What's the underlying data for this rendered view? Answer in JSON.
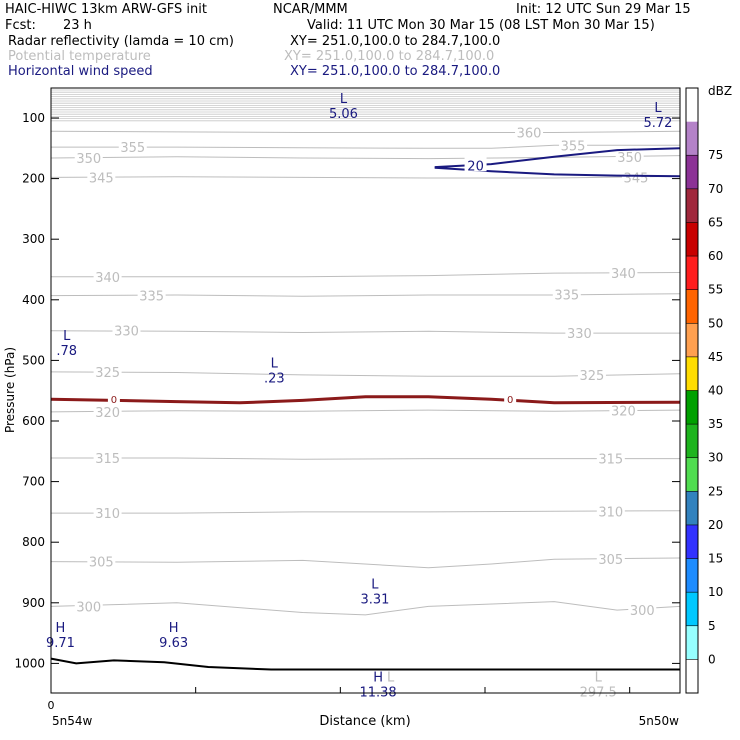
{
  "header": {
    "model": "HAIC-HIWC 13km ARW-GFS init",
    "org": "NCAR/MMM",
    "init": "Init: 12 UTC Sun 29 Mar 15",
    "fcst_label": "Fcst:",
    "fcst_value": "23 h",
    "valid": "Valid: 11 UTC Mon 30 Mar 15 (08 LST Mon 30 Mar 15)",
    "fields": [
      {
        "name": "Radar reflectivity (lamda = 10 cm)",
        "xy": "XY= 251.0,100.0 to 284.7,100.0",
        "color": "#000000"
      },
      {
        "name": "Potential temperature",
        "xy": "XY= 251.0,100.0 to 284.7,100.0",
        "color": "#bdbdbd"
      },
      {
        "name": "Horizontal wind speed",
        "xy": "XY= 251.0,100.0 to 284.7,100.0",
        "color": "#1a1a80"
      }
    ]
  },
  "chart_data": {
    "type": "line",
    "ylabel": "Pressure (hPa)",
    "xlabel": "Distance (km)",
    "xlim": [
      0,
      10
    ],
    "ylim": [
      1050,
      55
    ],
    "y_ticks": [
      100,
      200,
      300,
      400,
      500,
      600,
      700,
      800,
      900,
      1000
    ],
    "x_tick_labels": [
      {
        "x": 0,
        "label": "0"
      }
    ],
    "x_end_labels": {
      "left": "5n54w",
      "right": "5n50w"
    },
    "x_minor_ticks": [
      2.3,
      4.6,
      6.9,
      9.2
    ],
    "isentropes": [
      {
        "label": "360",
        "points": [
          [
            0,
            122
          ],
          [
            2,
            123
          ],
          [
            4,
            124
          ],
          [
            6,
            124
          ],
          [
            8,
            124
          ],
          [
            10,
            122
          ]
        ],
        "labels_at": [
          [
            7.6,
            124
          ]
        ]
      },
      {
        "label": "355",
        "points": [
          [
            0,
            148
          ],
          [
            2,
            148
          ],
          [
            4,
            149
          ],
          [
            6,
            150
          ],
          [
            7,
            150
          ],
          [
            8,
            145
          ],
          [
            10,
            145
          ]
        ],
        "labels_at": [
          [
            1.3,
            148
          ],
          [
            8.3,
            145
          ]
        ]
      },
      {
        "label": "350",
        "points": [
          [
            0,
            166
          ],
          [
            2,
            164
          ],
          [
            4,
            166
          ],
          [
            6,
            167
          ],
          [
            8,
            165
          ],
          [
            10,
            162
          ]
        ],
        "labels_at": [
          [
            0.6,
            166
          ],
          [
            9.2,
            164
          ]
        ]
      },
      {
        "label": "345",
        "points": [
          [
            0,
            198
          ],
          [
            2,
            197
          ],
          [
            4,
            198
          ],
          [
            6,
            199
          ],
          [
            8,
            199
          ],
          [
            10,
            196
          ]
        ],
        "labels_at": [
          [
            0.8,
            198
          ],
          [
            9.3,
            198
          ]
        ]
      },
      {
        "label": "340",
        "points": [
          [
            0,
            362
          ],
          [
            2,
            362
          ],
          [
            4,
            362
          ],
          [
            6,
            360
          ],
          [
            8,
            356
          ],
          [
            10,
            355
          ]
        ],
        "labels_at": [
          [
            0.9,
            362
          ],
          [
            9.1,
            356
          ]
        ]
      },
      {
        "label": "335",
        "points": [
          [
            0,
            393
          ],
          [
            2,
            392
          ],
          [
            4,
            394
          ],
          [
            6,
            392
          ],
          [
            8,
            392
          ],
          [
            10,
            390
          ]
        ],
        "labels_at": [
          [
            1.6,
            393
          ],
          [
            8.2,
            391
          ]
        ]
      },
      {
        "label": "330",
        "points": [
          [
            0,
            451
          ],
          [
            2,
            452
          ],
          [
            4,
            454
          ],
          [
            6,
            452
          ],
          [
            8,
            455
          ],
          [
            10,
            455
          ]
        ],
        "labels_at": [
          [
            1.2,
            451
          ],
          [
            8.4,
            455
          ]
        ]
      },
      {
        "label": "325",
        "points": [
          [
            0,
            519
          ],
          [
            2,
            520
          ],
          [
            4,
            524
          ],
          [
            6,
            526
          ],
          [
            8,
            526
          ],
          [
            10,
            522
          ]
        ],
        "labels_at": [
          [
            0.9,
            519
          ],
          [
            8.6,
            524
          ]
        ]
      },
      {
        "label": "320",
        "points": [
          [
            0,
            585
          ],
          [
            2,
            583
          ],
          [
            4,
            584
          ],
          [
            6,
            582
          ],
          [
            8,
            584
          ],
          [
            10,
            582
          ]
        ],
        "labels_at": [
          [
            0.9,
            585
          ],
          [
            9.1,
            583
          ]
        ]
      },
      {
        "label": "315",
        "points": [
          [
            0,
            661
          ],
          [
            2,
            661
          ],
          [
            4,
            663
          ],
          [
            6,
            662
          ],
          [
            8,
            662
          ],
          [
            10,
            662
          ]
        ],
        "labels_at": [
          [
            0.9,
            661
          ],
          [
            8.9,
            662
          ]
        ]
      },
      {
        "label": "310",
        "points": [
          [
            0,
            752
          ],
          [
            2,
            752
          ],
          [
            4,
            750
          ],
          [
            6,
            750
          ],
          [
            8,
            749
          ],
          [
            10,
            748
          ]
        ],
        "labels_at": [
          [
            0.9,
            752
          ],
          [
            8.9,
            749
          ]
        ]
      },
      {
        "label": "305",
        "points": [
          [
            0,
            832
          ],
          [
            2,
            833
          ],
          [
            4,
            830
          ],
          [
            6,
            842
          ],
          [
            7,
            836
          ],
          [
            8,
            828
          ],
          [
            10,
            826
          ]
        ],
        "labels_at": [
          [
            0.8,
            832
          ],
          [
            8.9,
            828
          ]
        ]
      },
      {
        "label": "300",
        "points": [
          [
            0,
            906
          ],
          [
            2,
            900
          ],
          [
            4,
            916
          ],
          [
            5,
            920
          ],
          [
            6,
            906
          ],
          [
            8,
            898
          ],
          [
            9,
            912
          ],
          [
            10,
            906
          ]
        ],
        "labels_at": [
          [
            0.6,
            906
          ],
          [
            9.4,
            912
          ]
        ]
      }
    ],
    "wind_speed_contours": [
      {
        "label": "20",
        "points": [
          [
            6.1,
            181
          ],
          [
            7,
            176
          ],
          [
            8,
            164
          ],
          [
            9,
            153
          ],
          [
            10,
            150
          ]
        ]
      },
      {
        "label": "",
        "points": [
          [
            6.1,
            182
          ],
          [
            7,
            188
          ],
          [
            8,
            193
          ],
          [
            9,
            195
          ],
          [
            10,
            196
          ]
        ]
      }
    ],
    "wind_label_at": [
      6.75,
      178
    ],
    "zero_contour": {
      "label": "0",
      "points": [
        [
          0,
          564
        ],
        [
          2,
          568
        ],
        [
          3,
          570
        ],
        [
          4,
          566
        ],
        [
          5,
          560
        ],
        [
          6,
          560
        ],
        [
          7,
          564
        ],
        [
          8,
          570
        ],
        [
          10,
          569
        ]
      ],
      "labels_at": [
        [
          1,
          564
        ],
        [
          7.3,
          564
        ]
      ]
    },
    "surface": {
      "points": [
        [
          0,
          992
        ],
        [
          0.4,
          1000
        ],
        [
          1,
          995
        ],
        [
          1.8,
          998
        ],
        [
          2.5,
          1006
        ],
        [
          3.5,
          1010
        ],
        [
          10,
          1010
        ]
      ]
    },
    "lows_highs": [
      {
        "symbol": "L",
        "value": "5.06",
        "x": 4.65,
        "p": 75,
        "color": "#1a1a80"
      },
      {
        "symbol": "L",
        "value": "5.72",
        "x": 9.65,
        "p": 90,
        "color": "#1a1a80"
      },
      {
        "symbol": "L",
        "value": ".78",
        "x": 0.25,
        "p": 466,
        "color": "#1a1a80"
      },
      {
        "symbol": "L",
        "value": ".23",
        "x": 3.55,
        "p": 512,
        "color": "#1a1a80"
      },
      {
        "symbol": "L",
        "value": "3.31",
        "x": 5.15,
        "p": 876,
        "color": "#1a1a80"
      },
      {
        "symbol": "H",
        "value": "9.71",
        "x": 0.15,
        "p": 948,
        "color": "#1a1a80"
      },
      {
        "symbol": "H",
        "value": "9.63",
        "x": 1.95,
        "p": 948,
        "color": "#1a1a80"
      },
      {
        "symbol": "H",
        "value": "11.38",
        "x": 5.2,
        "p": 1030,
        "color": "#1a1a80"
      },
      {
        "symbol": "L",
        "value": "",
        "x": 5.4,
        "p": 1030,
        "color": "#bdbdbd"
      },
      {
        "symbol": "L",
        "value": "297.5",
        "x": 8.7,
        "p": 1030,
        "color": "#bdbdbd"
      }
    ],
    "colorbar": {
      "unit": "dBZ",
      "levels": [
        0,
        5,
        10,
        15,
        20,
        25,
        30,
        35,
        40,
        45,
        50,
        55,
        60,
        65,
        70,
        75
      ],
      "colors": [
        "#ffffff",
        "#96ffff",
        "#00c8ff",
        "#1e8cff",
        "#3232ff",
        "#3282be",
        "#50dc50",
        "#1eb41e",
        "#00a000",
        "#ffdc00",
        "#ffa050",
        "#ff6400",
        "#ff1e1e",
        "#c80000",
        "#a0283c",
        "#8c3296",
        "#b482c8",
        "#ffffff"
      ]
    }
  }
}
